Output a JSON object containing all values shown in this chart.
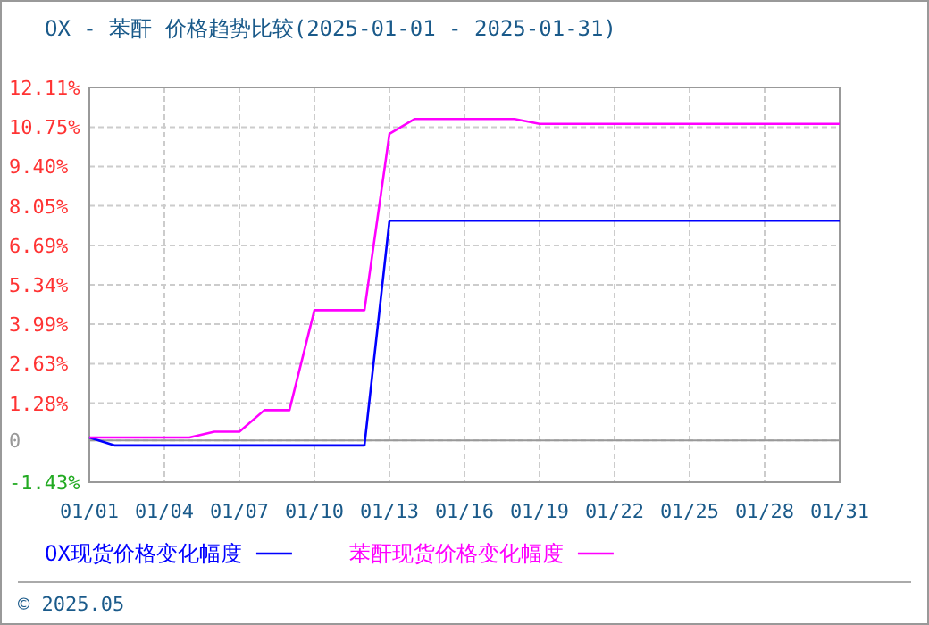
{
  "chart_data": {
    "type": "line",
    "title": "OX - 苯酐 价格趋势比较(2025-01-01 - 2025-01-31)",
    "xlim": [
      "2025-01-01",
      "2025-01-31"
    ],
    "xticks": [
      {
        "value": "2025-01-01",
        "label": "01/01"
      },
      {
        "value": "2025-01-04",
        "label": "01/04"
      },
      {
        "value": "2025-01-07",
        "label": "01/07"
      },
      {
        "value": "2025-01-10",
        "label": "01/10"
      },
      {
        "value": "2025-01-13",
        "label": "01/13"
      },
      {
        "value": "2025-01-16",
        "label": "01/16"
      },
      {
        "value": "2025-01-19",
        "label": "01/19"
      },
      {
        "value": "2025-01-22",
        "label": "01/22"
      },
      {
        "value": "2025-01-25",
        "label": "01/25"
      },
      {
        "value": "2025-01-28",
        "label": "01/28"
      },
      {
        "value": "2025-01-31",
        "label": "01/31"
      }
    ],
    "ylim": [
      -1.43,
      12.11
    ],
    "yticks": [
      {
        "value": -1.43,
        "label": "-1.43%"
      },
      {
        "value": 0,
        "label": "0"
      },
      {
        "value": 1.28,
        "label": "1.28%"
      },
      {
        "value": 2.63,
        "label": "2.63%"
      },
      {
        "value": 3.99,
        "label": "3.99%"
      },
      {
        "value": 5.34,
        "label": "5.34%"
      },
      {
        "value": 6.69,
        "label": "6.69%"
      },
      {
        "value": 8.05,
        "label": "8.05%"
      },
      {
        "value": 9.4,
        "label": "9.40%"
      },
      {
        "value": 10.75,
        "label": "10.75%"
      },
      {
        "value": 12.11,
        "label": "12.11%"
      }
    ],
    "grid": true,
    "legend": "bottom",
    "line_style": "solid",
    "marker": "none",
    "ref_lines": [
      {
        "axis": "y",
        "value": 0,
        "color": "#999999"
      }
    ],
    "series": [
      {
        "name": "OX现货价格变化幅度",
        "color": "#0000ff",
        "x": [
          "2025-01-01",
          "2025-01-02",
          "2025-01-12",
          "2025-01-13",
          "2025-01-31"
        ],
        "values": [
          0.1,
          -0.17,
          -0.17,
          7.54,
          7.54
        ]
      },
      {
        "name": "苯酐现货价格变化幅度",
        "color": "#ff00ff",
        "x": [
          "2025-01-01",
          "2025-01-05",
          "2025-01-06",
          "2025-01-07",
          "2025-01-08",
          "2025-01-09",
          "2025-01-10",
          "2025-01-12",
          "2025-01-13",
          "2025-01-14",
          "2025-01-18",
          "2025-01-19",
          "2025-01-31"
        ],
        "values": [
          0.1,
          0.1,
          0.3,
          0.3,
          1.04,
          1.04,
          4.47,
          4.47,
          10.52,
          11.03,
          11.03,
          10.86,
          10.86
        ]
      }
    ],
    "annotations": [
      "© 2025.05"
    ]
  }
}
